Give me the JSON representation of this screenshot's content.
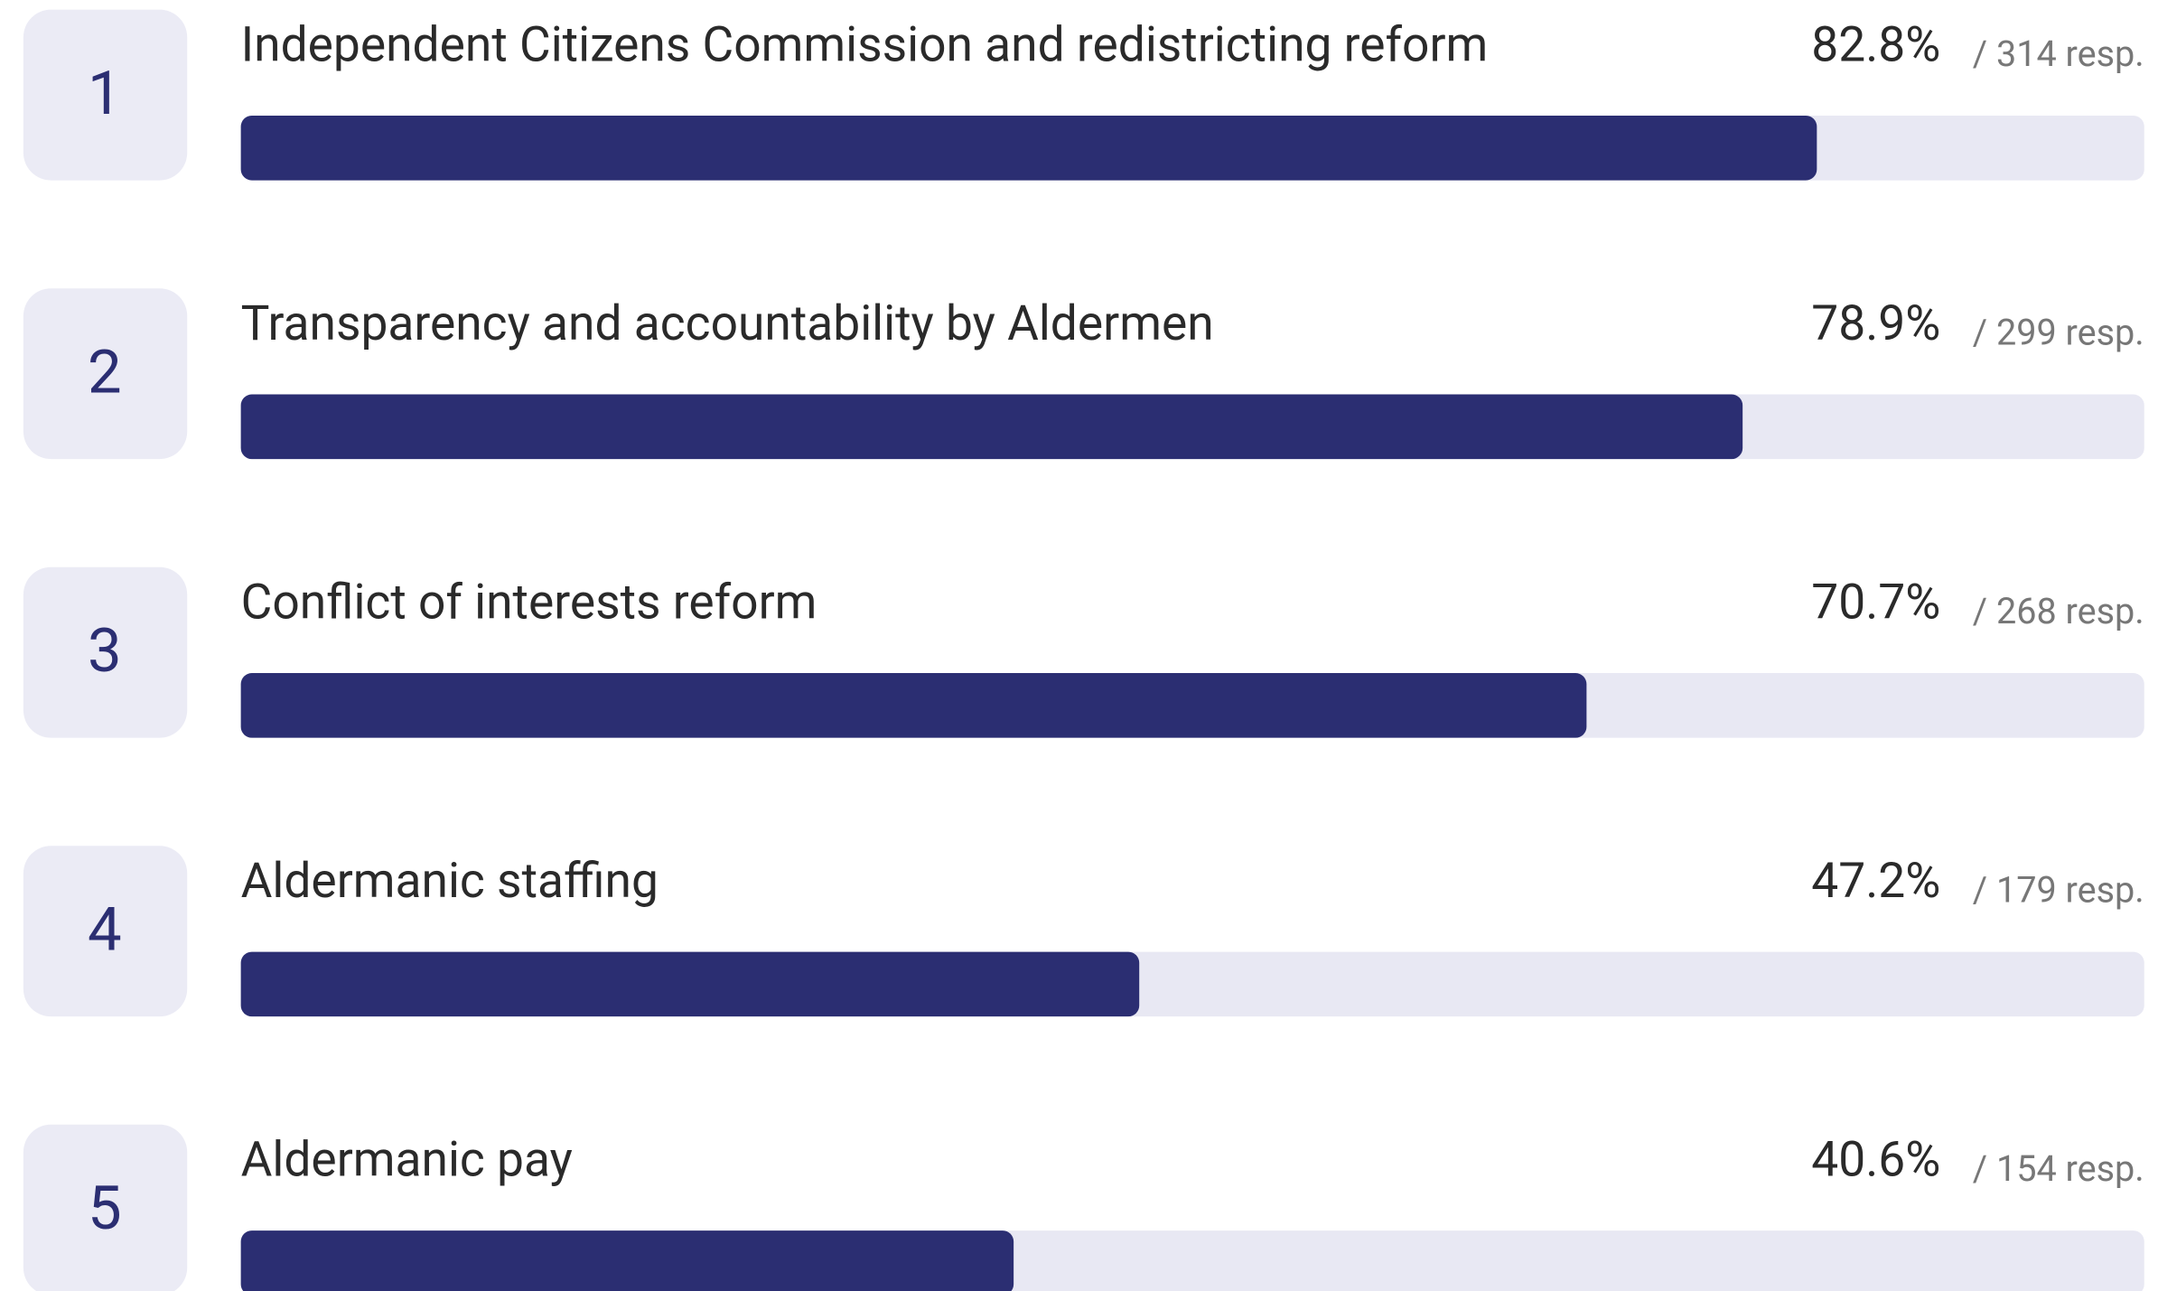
{
  "chart_data": {
    "type": "bar",
    "orientation": "horizontal",
    "ranks": [
      1,
      2,
      3,
      4,
      5
    ],
    "categories": [
      "Independent Citizens Commission and redistricting reform",
      "Transparency and accountability by Aldermen",
      "Conflict of interests reform",
      "Aldermanic staffing",
      "Aldermanic pay"
    ],
    "values": [
      82.8,
      78.9,
      70.7,
      47.2,
      40.6
    ],
    "value_labels": [
      "82.8%",
      "78.9%",
      "70.7%",
      "47.2%",
      "40.6%"
    ],
    "response_labels": [
      "/ 314 resp.",
      "/ 299 resp.",
      "/ 268 resp.",
      "/ 179 resp.",
      "/ 154 resp."
    ],
    "xlim": [
      0,
      100
    ],
    "color": "#2b2e72",
    "track_color": "#e8e8f3"
  }
}
